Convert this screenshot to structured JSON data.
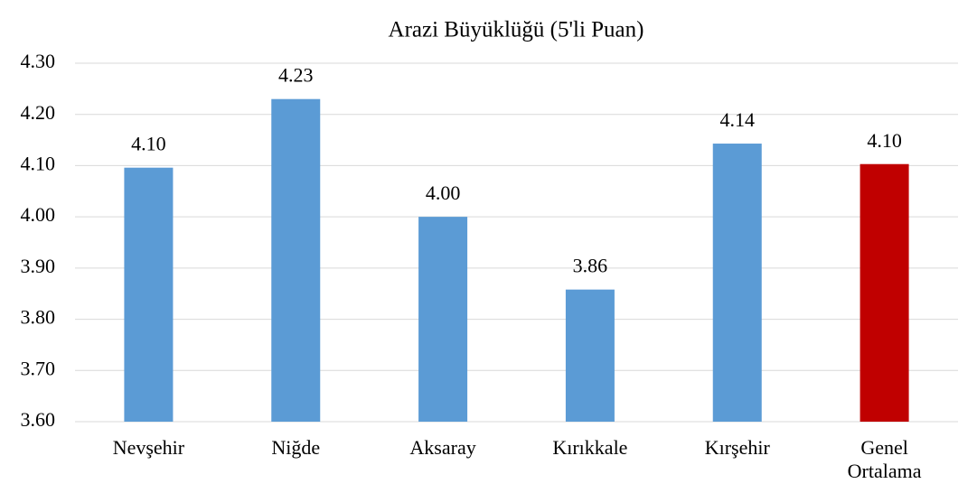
{
  "chart_data": {
    "type": "bar",
    "title": "Arazi Büyüklüğü (5'li Puan)",
    "categories": [
      "Nevşehir",
      "Niğde",
      "Aksaray",
      "Kırıkkale",
      "Kırşehir",
      "Genel Ortalama"
    ],
    "values": [
      4.096,
      4.23,
      4.0,
      3.858,
      4.143,
      4.103
    ],
    "value_labels": [
      "4.10",
      "4.23",
      "4.00",
      "3.86",
      "4.14",
      "4.10"
    ],
    "colors": [
      "#5b9bd5",
      "#5b9bd5",
      "#5b9bd5",
      "#5b9bd5",
      "#5b9bd5",
      "#c00000"
    ],
    "ylim": [
      3.6,
      4.3
    ],
    "yticks": [
      {
        "value": 3.6,
        "label": "3.60"
      },
      {
        "value": 3.7,
        "label": "3.70"
      },
      {
        "value": 3.8,
        "label": "3.80"
      },
      {
        "value": 3.9,
        "label": "3.90"
      },
      {
        "value": 4.0,
        "label": "4.00"
      },
      {
        "value": 4.1,
        "label": "4.10"
      },
      {
        "value": 4.2,
        "label": "4.20"
      },
      {
        "value": 4.3,
        "label": "4.30"
      }
    ],
    "grid": true
  }
}
